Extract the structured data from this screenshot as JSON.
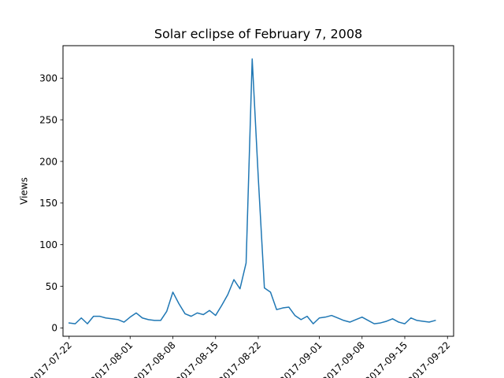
{
  "chart_data": {
    "type": "line",
    "title": "Solar eclipse of February 7, 2008",
    "xlabel": "",
    "ylabel": "Views",
    "x_start": "2017-07-22",
    "x_ticks": [
      "2017-07-22",
      "2017-08-01",
      "2017-08-08",
      "2017-08-15",
      "2017-08-22",
      "2017-09-01",
      "2017-09-08",
      "2017-09-15",
      "2017-09-22"
    ],
    "y_ticks": [
      0,
      50,
      100,
      150,
      200,
      250,
      300
    ],
    "ylim": [
      -10,
      339
    ],
    "xlim": [
      "2017-07-21",
      "2017-09-23"
    ],
    "grid": false,
    "series": [
      {
        "color": "#1f77b4",
        "x": [
          "2017-07-22",
          "2017-07-23",
          "2017-07-24",
          "2017-07-25",
          "2017-07-26",
          "2017-07-27",
          "2017-07-28",
          "2017-07-29",
          "2017-07-30",
          "2017-07-31",
          "2017-08-01",
          "2017-08-02",
          "2017-08-03",
          "2017-08-04",
          "2017-08-05",
          "2017-08-06",
          "2017-08-07",
          "2017-08-08",
          "2017-08-09",
          "2017-08-10",
          "2017-08-11",
          "2017-08-12",
          "2017-08-13",
          "2017-08-14",
          "2017-08-15",
          "2017-08-16",
          "2017-08-17",
          "2017-08-18",
          "2017-08-19",
          "2017-08-20",
          "2017-08-21",
          "2017-08-22",
          "2017-08-23",
          "2017-08-24",
          "2017-08-25",
          "2017-08-26",
          "2017-08-27",
          "2017-08-28",
          "2017-08-29",
          "2017-08-30",
          "2017-08-31",
          "2017-09-01",
          "2017-09-02",
          "2017-09-03",
          "2017-09-04",
          "2017-09-05",
          "2017-09-06",
          "2017-09-07",
          "2017-09-08",
          "2017-09-09",
          "2017-09-10",
          "2017-09-11",
          "2017-09-12",
          "2017-09-13",
          "2017-09-14",
          "2017-09-15",
          "2017-09-16",
          "2017-09-17",
          "2017-09-18",
          "2017-09-19",
          "2017-09-20",
          "2017-09-21"
        ],
        "values": [
          6,
          5,
          12,
          5,
          14,
          14,
          12,
          11,
          10,
          7,
          13,
          18,
          12,
          10,
          9,
          9,
          20,
          43,
          29,
          17,
          14,
          18,
          16,
          21,
          15,
          27,
          40,
          58,
          47,
          78,
          323,
          180,
          48,
          43,
          22,
          24,
          25,
          15,
          10,
          14,
          5,
          12,
          13,
          15,
          12,
          9,
          7,
          10,
          13,
          9,
          5,
          6,
          8,
          11,
          7,
          5,
          12,
          9,
          8,
          7,
          9,
          null
        ]
      }
    ]
  }
}
